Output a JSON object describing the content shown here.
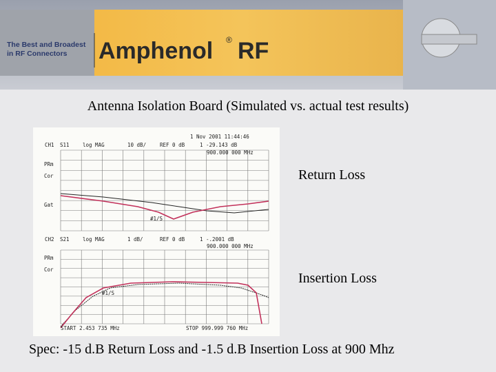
{
  "header": {
    "tagline": [
      "The Best and Broadest",
      "in RF Connectors"
    ],
    "brand": "Amphenol",
    "brand_mark": "®",
    "brand_suffix": "RF"
  },
  "slide": {
    "title": "Antenna Isolation Board (Simulated vs. actual test results)",
    "labels": [
      "Return Loss",
      "Insertion Loss"
    ],
    "spec": "Spec: -15 d.B Return Loss and -1.5 d.B Insertion Loss at 900 Mhz"
  },
  "analyzer": {
    "date": "1 Nov 2001  11:44:46",
    "upper": {
      "channel": "CH1",
      "param": "S11",
      "format": "log MAG",
      "scale": "10 dB/",
      "ref": "REF 0 dB",
      "marker": "1  -29.143 dB",
      "freq": "900.000 000 MHz",
      "side": [
        "PRm",
        "Cor",
        "Gat"
      ],
      "note": "#1/S"
    },
    "lower": {
      "channel": "CH2",
      "param": "S21",
      "format": "log MAG",
      "scale": "1 dB/",
      "ref": "REF 0 dB",
      "marker": "1  -.2001 dB",
      "freq": "900.000 000 MHz",
      "side": [
        "PRm",
        "Cor"
      ],
      "note": "#1/S"
    },
    "start": "START  2.453 735 MHz",
    "stop": "STOP  999.999 760 MHz"
  }
}
